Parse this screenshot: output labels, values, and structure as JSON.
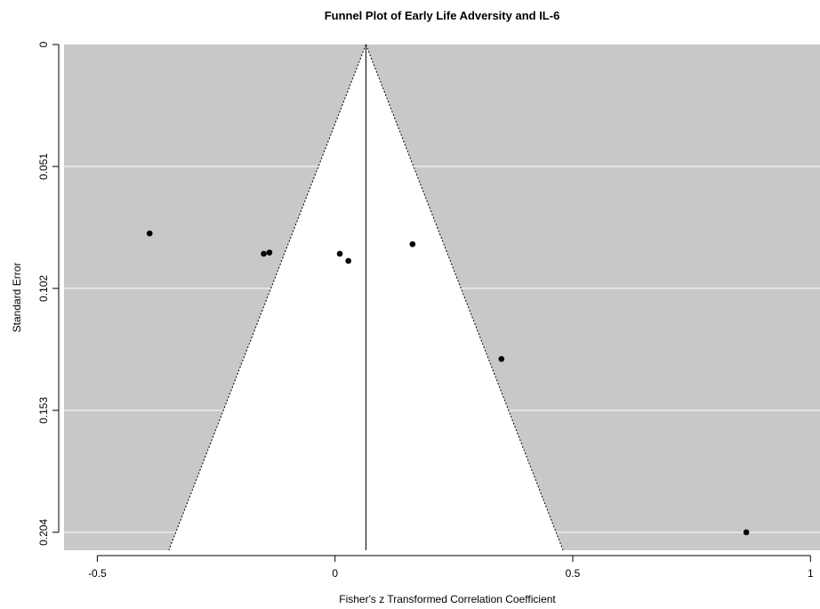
{
  "chart_data": {
    "type": "scatter",
    "title": "Funnel Plot of Early Life Adversity and IL-6",
    "xlabel": "Fisher's z Transformed Correlation Coefficient",
    "ylabel": "Standard Error",
    "xlim": [
      -0.57,
      1.02
    ],
    "ylim": [
      0.2115,
      0
    ],
    "y_reversed": true,
    "x_ticks": [
      -0.5,
      0,
      0.5,
      1
    ],
    "x_tick_labels": [
      "-0.5",
      "0",
      "0.5",
      "1"
    ],
    "y_ticks": [
      0,
      0.051,
      0.102,
      0.153,
      0.204
    ],
    "y_tick_labels": [
      "0",
      "0.051",
      "0.102",
      "0.153",
      "0.204"
    ],
    "grid": true,
    "background_color": "#c8c8c8",
    "funnel_fill_color": "#ffffff",
    "point_color": "#000000",
    "pooled_estimate": 0.065,
    "funnel_se_max": 0.2115,
    "points": [
      {
        "x": -0.39,
        "y": 0.079
      },
      {
        "x": -0.15,
        "y": 0.0875
      },
      {
        "x": -0.138,
        "y": 0.087
      },
      {
        "x": 0.01,
        "y": 0.0875
      },
      {
        "x": 0.028,
        "y": 0.0905
      },
      {
        "x": 0.163,
        "y": 0.0835
      },
      {
        "x": 0.35,
        "y": 0.1315
      },
      {
        "x": 0.865,
        "y": 0.204
      }
    ]
  }
}
